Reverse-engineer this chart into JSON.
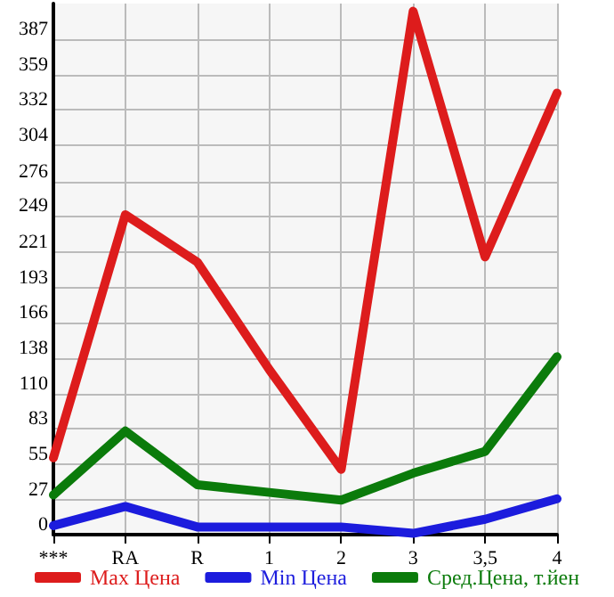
{
  "chart_data": {
    "type": "line",
    "categories": [
      "***",
      "RA",
      "R",
      "1",
      "2",
      "3",
      "3,5",
      "4"
    ],
    "series": [
      {
        "name": "Max Цена",
        "color": "#dd1c1c",
        "values": [
          60,
          250,
          213,
          129,
          51,
          409,
          217,
          345
        ]
      },
      {
        "name": "Min Цена",
        "color": "#1c1cdd",
        "values": [
          7,
          22,
          6,
          6,
          6,
          1,
          12,
          28
        ]
      },
      {
        "name": "Сред.Цена, т.йен",
        "color": "#0b7b0b",
        "values": [
          31,
          81,
          39,
          33,
          27,
          48,
          65,
          139
        ]
      }
    ],
    "ylim": [
      0,
      415
    ],
    "yticks": [
      0,
      27,
      55,
      83,
      110,
      138,
      166,
      193,
      221,
      249,
      276,
      304,
      332,
      359,
      387
    ],
    "grid": true,
    "legend": "bottom",
    "marker": "none",
    "line_style": "solid"
  }
}
